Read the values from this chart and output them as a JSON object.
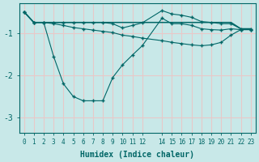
{
  "xlabel": "Humidex (Indice chaleur)",
  "bg_color": "#c8e8e8",
  "grid_color": "#e8c8c8",
  "line_color": "#006666",
  "xlim": [
    -0.5,
    23.5
  ],
  "ylim": [
    -3.35,
    -0.3
  ],
  "yticks": [
    -3,
    -2,
    -1
  ],
  "xtick_vals": [
    0,
    1,
    2,
    3,
    4,
    5,
    6,
    7,
    8,
    9,
    10,
    11,
    12,
    14,
    15,
    16,
    17,
    18,
    19,
    20,
    21,
    22,
    23
  ],
  "xtick_labels": [
    "0",
    "1",
    "2",
    "3",
    "4",
    "5",
    "6",
    "7",
    "8",
    "9",
    "10",
    "11",
    "12",
    "14",
    "15",
    "16",
    "17",
    "18",
    "19",
    "20",
    "21",
    "22",
    "23"
  ],
  "l1x": [
    0,
    1,
    2,
    3,
    4,
    5,
    6,
    7,
    8,
    9,
    10,
    11,
    12,
    14,
    15,
    16,
    17,
    18,
    19,
    20,
    21,
    22,
    23
  ],
  "l1y": [
    -0.5,
    -0.75,
    -0.75,
    -0.75,
    -0.75,
    -0.75,
    -0.75,
    -0.75,
    -0.75,
    -0.75,
    -0.75,
    -0.75,
    -0.75,
    -0.75,
    -0.75,
    -0.75,
    -0.75,
    -0.75,
    -0.75,
    -0.75,
    -0.75,
    -0.9,
    -0.9
  ],
  "l2x": [
    0,
    1,
    2,
    3,
    4,
    5,
    6,
    7,
    8,
    9,
    10,
    11,
    12,
    14,
    15,
    16,
    17,
    18,
    19,
    20,
    21,
    22,
    23
  ],
  "l2y": [
    -0.5,
    -0.75,
    -0.75,
    -0.78,
    -0.82,
    -0.87,
    -0.9,
    -0.93,
    -0.96,
    -0.99,
    -1.05,
    -1.08,
    -1.12,
    -1.18,
    -1.22,
    -1.25,
    -1.28,
    -1.3,
    -1.28,
    -1.22,
    -1.05,
    -0.92,
    -0.92
  ],
  "l3x": [
    0,
    1,
    2,
    3,
    4,
    5,
    6,
    7,
    8,
    9,
    10,
    11,
    12,
    14,
    15,
    16,
    17,
    18,
    19,
    20,
    21,
    22,
    23
  ],
  "l3y": [
    -0.5,
    -0.75,
    -0.75,
    -1.55,
    -2.2,
    -2.5,
    -2.6,
    -2.6,
    -2.6,
    -2.05,
    -1.75,
    -1.52,
    -1.3,
    -0.65,
    -0.78,
    -0.78,
    -0.82,
    -0.9,
    -0.92,
    -0.93,
    -0.9,
    -0.92,
    -0.92
  ],
  "l4x": [
    0,
    1,
    2,
    3,
    4,
    5,
    6,
    7,
    8,
    9,
    10,
    11,
    12,
    14,
    15,
    16,
    17,
    18,
    19,
    20,
    21,
    22,
    23
  ],
  "l4y": [
    -0.5,
    -0.75,
    -0.75,
    -0.75,
    -0.75,
    -0.75,
    -0.75,
    -0.75,
    -0.75,
    -0.78,
    -0.88,
    -0.82,
    -0.76,
    -0.47,
    -0.55,
    -0.58,
    -0.63,
    -0.73,
    -0.75,
    -0.78,
    -0.78,
    -0.9,
    -0.9
  ]
}
